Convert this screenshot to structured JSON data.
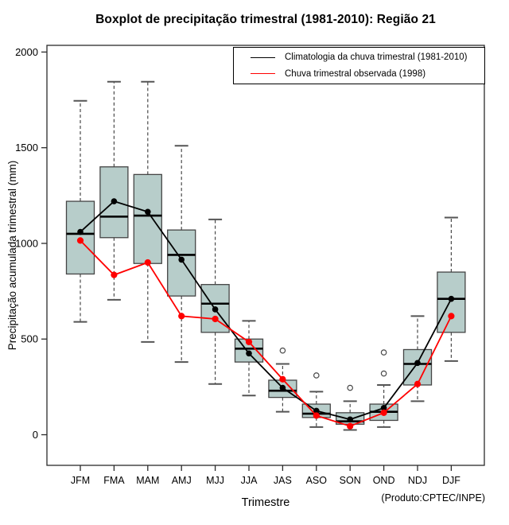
{
  "chart_data": {
    "type": "boxplot",
    "title": "Boxplot de precipitação trimestral (1981-2010): Região 21",
    "xlabel": "Trimestre",
    "ylabel": "Precipitação acumulada trimestral (mm)",
    "source_note": "(Produto:CPTEC/INPE)",
    "categories": [
      "JFM",
      "FMA",
      "MAM",
      "AMJ",
      "MJJ",
      "JJA",
      "JAS",
      "ASO",
      "SON",
      "OND",
      "NDJ",
      "DJF"
    ],
    "yticks": [
      0,
      500,
      1000,
      1500,
      2000
    ],
    "ylim": [
      -160,
      2035
    ],
    "grid": false,
    "legend_position": "top-right",
    "boxes": [
      {
        "category": "JFM",
        "low": 590,
        "q1": 840,
        "median": 1050,
        "q3": 1220,
        "high": 1745,
        "outliers": []
      },
      {
        "category": "FMA",
        "low": 705,
        "q1": 1030,
        "median": 1140,
        "q3": 1400,
        "high": 1845,
        "outliers": []
      },
      {
        "category": "MAM",
        "low": 485,
        "q1": 895,
        "median": 1145,
        "q3": 1360,
        "high": 1845,
        "outliers": []
      },
      {
        "category": "AMJ",
        "low": 380,
        "q1": 725,
        "median": 940,
        "q3": 1070,
        "high": 1510,
        "outliers": []
      },
      {
        "category": "MJJ",
        "low": 265,
        "q1": 535,
        "median": 685,
        "q3": 785,
        "high": 1125,
        "outliers": []
      },
      {
        "category": "JJA",
        "low": 205,
        "q1": 380,
        "median": 450,
        "q3": 500,
        "high": 595,
        "outliers": []
      },
      {
        "category": "JAS",
        "low": 120,
        "q1": 195,
        "median": 230,
        "q3": 285,
        "high": 370,
        "outliers": [
          440
        ]
      },
      {
        "category": "ASO",
        "low": 40,
        "q1": 90,
        "median": 110,
        "q3": 160,
        "high": 225,
        "outliers": [
          310
        ]
      },
      {
        "category": "SON",
        "low": 25,
        "q1": 55,
        "median": 70,
        "q3": 115,
        "high": 175,
        "outliers": [
          245
        ]
      },
      {
        "category": "OND",
        "low": 40,
        "q1": 75,
        "median": 120,
        "q3": 160,
        "high": 260,
        "outliers": [
          320,
          430
        ]
      },
      {
        "category": "NDJ",
        "low": 175,
        "q1": 260,
        "median": 370,
        "q3": 445,
        "high": 620,
        "outliers": []
      },
      {
        "category": "DJF",
        "low": 385,
        "q1": 535,
        "median": 710,
        "q3": 850,
        "high": 1135,
        "outliers": []
      }
    ],
    "series": [
      {
        "name": "Climatologia da chuva trimestral (1981-2010)",
        "color": "#000000",
        "values": [
          1060,
          1220,
          1165,
          915,
          655,
          425,
          245,
          125,
          80,
          140,
          375,
          710
        ]
      },
      {
        "name": "Chuva trimestral observada (1998)",
        "color": "#ff0000",
        "values": [
          1015,
          835,
          900,
          620,
          605,
          485,
          290,
          100,
          45,
          115,
          265,
          620
        ]
      }
    ],
    "colors": {
      "box_fill": "#b7cdca",
      "box_border": "#454545",
      "whisker": "#4a4a4a",
      "whisker_cap": "#555555",
      "outlier": "#4a4a4a",
      "axis": "#2b2b2b"
    }
  }
}
